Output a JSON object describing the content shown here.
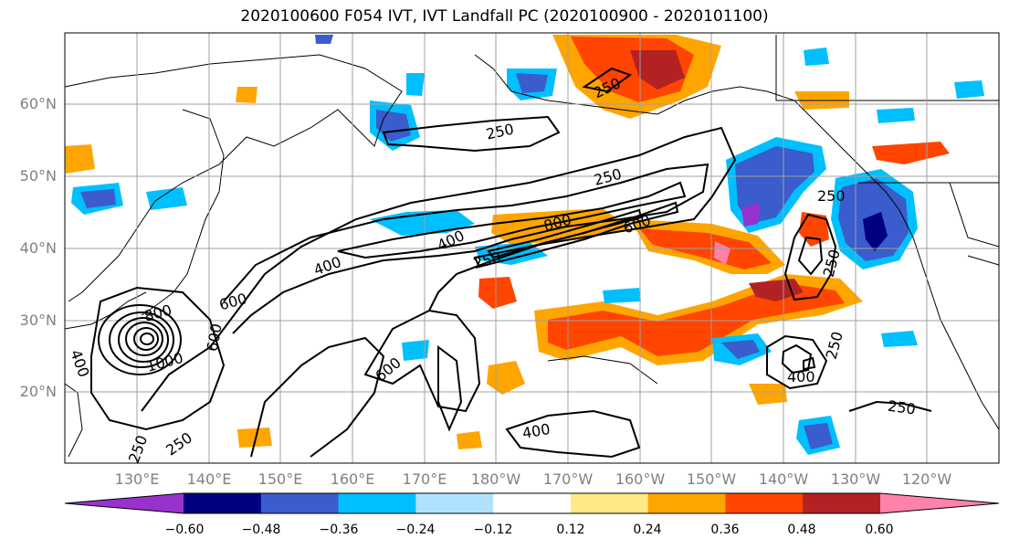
{
  "title": "2020100600 F054 IVT, IVT Landfall PC (2020100900 - 2020101100)",
  "lat_labels": [
    "60°N",
    "50°N",
    "40°N",
    "30°N",
    "20°N"
  ],
  "lon_labels": [
    "130°E",
    "140°E",
    "150°E",
    "160°E",
    "170°E",
    "180°W",
    "170°W",
    "160°W",
    "150°W",
    "140°W",
    "130°W",
    "120°W"
  ],
  "colorbar": {
    "ticks": [
      "−0.60",
      "−0.48",
      "−0.36",
      "−0.24",
      "−0.12",
      "0.12",
      "0.24",
      "0.36",
      "0.48",
      "0.60"
    ],
    "colors": [
      "#9932cc",
      "#000080",
      "#3a5ccc",
      "#00bfff",
      "#b0e2ff",
      "#ffffff",
      "#ffe885",
      "#ffa500",
      "#ff4500",
      "#b22222",
      "#ff82ab"
    ]
  },
  "contour_labels": [
    "250",
    "250",
    "250",
    "250",
    "250",
    "250",
    "250",
    "250",
    "250",
    "400",
    "400",
    "400",
    "400",
    "400",
    "600",
    "600",
    "600",
    "600",
    "800",
    "800",
    "1000",
    "250"
  ]
}
